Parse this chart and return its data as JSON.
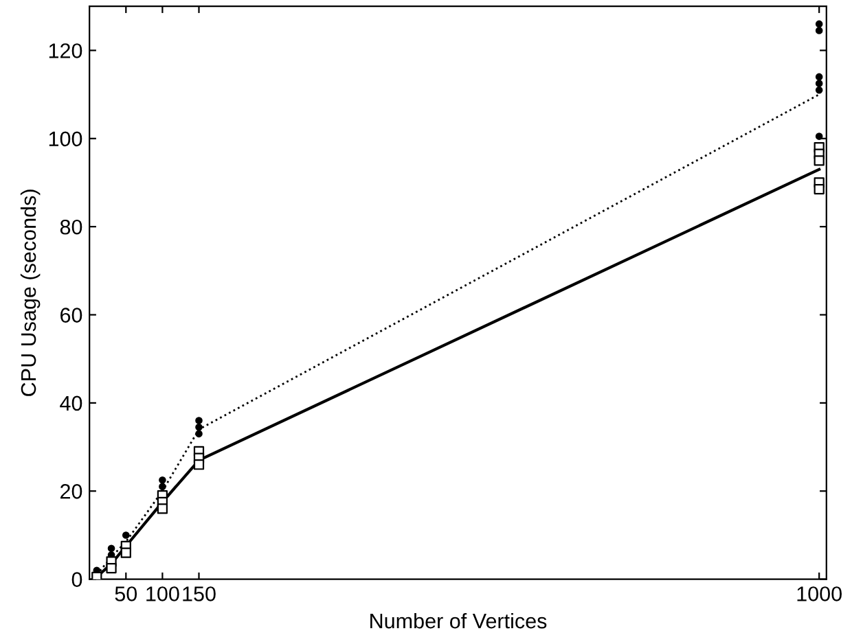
{
  "chart_data": {
    "type": "line",
    "xlabel": "Number of Vertices",
    "ylabel": "CPU Usage (seconds)",
    "xlim": [
      0,
      1010
    ],
    "ylim": [
      0,
      130
    ],
    "xticks": [
      50,
      100,
      150,
      1000
    ],
    "yticks": [
      0,
      20,
      40,
      60,
      80,
      100,
      120
    ],
    "grid": false,
    "legend": false,
    "series": [
      {
        "color": "#000000",
        "line_style": "dotted",
        "marker": "none",
        "x": [
          10,
          30,
          50,
          100,
          150,
          1000
        ],
        "values": [
          1,
          5,
          8.5,
          20,
          34,
          110
        ]
      },
      {
        "color": "#000000",
        "line_style": "solid",
        "marker": "none",
        "x": [
          10,
          30,
          50,
          100,
          150,
          1000
        ],
        "values": [
          0.5,
          3.5,
          7.5,
          17.5,
          27,
          93
        ]
      },
      {
        "type": "scatter",
        "color": "#000000",
        "marker": "circle",
        "x": [
          10,
          30,
          30,
          50,
          100,
          100,
          150,
          150,
          150,
          1000,
          1000,
          1000,
          1000,
          1000,
          1000
        ],
        "values": [
          2,
          7,
          5.5,
          10,
          22.5,
          21,
          36,
          34.5,
          33,
          126,
          124.5,
          114,
          112.5,
          111,
          100.5
        ]
      },
      {
        "type": "scatter",
        "color": "#000000",
        "marker": "square",
        "x": [
          10,
          30,
          30,
          50,
          50,
          100,
          100,
          100,
          150,
          150,
          150,
          1000,
          1000,
          1000,
          1000,
          1000
        ],
        "values": [
          0.5,
          4,
          2.5,
          7.5,
          6,
          19,
          17.5,
          16,
          29,
          27.5,
          26,
          98,
          96.5,
          95,
          90,
          88.5
        ]
      }
    ]
  }
}
